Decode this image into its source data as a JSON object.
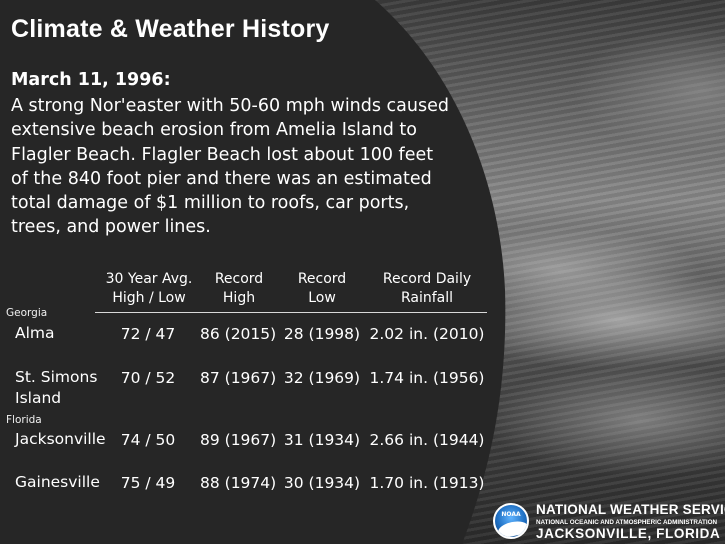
{
  "title": "Climate & Weather History",
  "event": {
    "date": "March 11, 1996:",
    "description": "A strong Nor'easter with 50-60 mph winds caused extensive beach erosion from Amelia Island to Flagler Beach. Flagler Beach lost about 100 feet of the 840 foot pier and there was an estimated total damage of $1 million to roofs, car ports, trees, and power lines."
  },
  "table": {
    "headers": {
      "avg": [
        "30 Year Avg.",
        "High / Low"
      ],
      "record_high": [
        "Record",
        "High"
      ],
      "record_low": [
        "Record",
        "Low"
      ],
      "rainfall": [
        "Record Daily",
        "Rainfall"
      ]
    },
    "groups": [
      {
        "state": "Georgia",
        "rows": [
          {
            "city": [
              "Alma"
            ],
            "avg": "72 / 47",
            "record_high": "86 (2015)",
            "record_low": "28 (1998)",
            "rainfall": "2.02 in. (2010)"
          },
          {
            "city": [
              "St. Simons",
              "Island"
            ],
            "avg": "70 / 52",
            "record_high": "87 (1967)",
            "record_low": "32 (1969)",
            "rainfall": "1.74 in. (1956)"
          }
        ]
      },
      {
        "state": "Florida",
        "rows": [
          {
            "city": [
              "Jacksonville"
            ],
            "avg": "74 / 50",
            "record_high": "89 (1967)",
            "record_low": "31 (1934)",
            "rainfall": "2.66 in. (1944)"
          },
          {
            "city": [
              "Gainesville"
            ],
            "avg": "75 / 49",
            "record_high": "88 (1974)",
            "record_low": "30 (1934)",
            "rainfall": "1.70 in. (1913)"
          }
        ]
      }
    ]
  },
  "branding": {
    "logo_text": "NOAA",
    "line1": "NATIONAL WEATHER SERVICE",
    "line2": "NATIONAL OCEANIC AND ATMOSPHERIC ADMINISTRATION",
    "line3": "JACKSONVILLE, FLORIDA"
  },
  "colors": {
    "panel": "#262626",
    "text": "#ffffff"
  }
}
